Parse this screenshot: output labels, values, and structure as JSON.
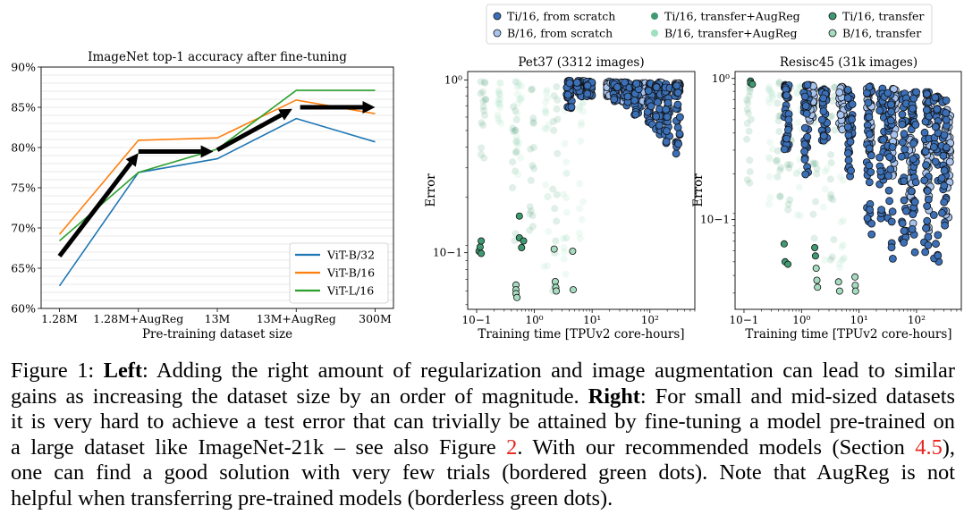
{
  "chart_data": [
    {
      "type": "line",
      "title": "ImageNet top-1 accuracy after fine-tuning",
      "xlabel": "Pre-training dataset size",
      "ylabel": "",
      "categories": [
        "1.28M",
        "1.28M+AugReg",
        "13M",
        "13M+AugReg",
        "300M"
      ],
      "yticks": [
        "60%",
        "65%",
        "70%",
        "75%",
        "80%",
        "85%",
        "90%"
      ],
      "ylim": [
        60,
        90
      ],
      "grid": true,
      "legend_position": "lower-right",
      "series": [
        {
          "name": "ViT-B/32",
          "color": "#1f77b4",
          "values": [
            62.8,
            76.9,
            78.6,
            83.6,
            80.7
          ]
        },
        {
          "name": "ViT-B/16",
          "color": "#ff7f0e",
          "values": [
            69.2,
            80.9,
            81.2,
            85.9,
            84.2
          ]
        },
        {
          "name": "ViT-L/16",
          "color": "#2ca02c",
          "values": [
            68.4,
            76.9,
            79.8,
            87.1,
            87.1
          ]
        }
      ],
      "arrows": [
        {
          "from": [
            0,
            66.5
          ],
          "to": [
            1,
            79.3
          ]
        },
        {
          "from": [
            1,
            79.5
          ],
          "to": [
            1.95,
            79.5
          ]
        },
        {
          "from": [
            2,
            79.7
          ],
          "to": [
            2.95,
            84.8
          ]
        },
        {
          "from": [
            3.05,
            85.0
          ],
          "to": [
            4.0,
            85.0
          ]
        }
      ]
    },
    {
      "type": "scatter",
      "title": "Pet37 (3312 images)",
      "xlabel": "Training time [TPUv2 core-hours]",
      "ylabel": "Error",
      "x_scale": "log",
      "y_scale": "log",
      "xlim": [
        0.07,
        600
      ],
      "ylim": [
        0.047,
        1.12
      ],
      "xticks": [
        "10−1",
        "10⁰",
        "10¹",
        "10²"
      ],
      "yticks": [
        "10⁰",
        "10−1"
      ],
      "series": [
        {
          "name": "Ti/16, from scratch",
          "color": "#3b6fb6",
          "border": true,
          "columns": [
            [
              4,
              0.65,
              0.99
            ],
            [
              6,
              0.8,
              0.99
            ],
            [
              9,
              0.8,
              0.98
            ],
            [
              25,
              0.75,
              0.97
            ],
            [
              40,
              0.7,
              0.97
            ],
            [
              60,
              0.62,
              0.96
            ],
            [
              100,
              0.55,
              0.96
            ],
            [
              140,
              0.48,
              0.95
            ],
            [
              200,
              0.42,
              0.95
            ],
            [
              300,
              0.36,
              0.94
            ]
          ]
        },
        {
          "name": "B/16, from scratch",
          "color": "#a8c4ee",
          "border": true,
          "columns": [
            [
              7,
              0.85,
              0.99
            ],
            [
              20,
              0.8,
              0.98
            ],
            [
              35,
              0.75,
              0.97
            ],
            [
              80,
              0.7,
              0.96
            ],
            [
              150,
              0.8,
              0.97
            ],
            [
              300,
              0.85,
              0.96
            ]
          ]
        },
        {
          "name": "Ti/16, transfer+AugReg",
          "color": "#3f9a72",
          "border": false,
          "columns": [
            [
              0.13,
              0.35,
              0.98
            ],
            [
              0.45,
              0.1,
              0.98
            ],
            [
              0.9,
              0.09,
              0.95
            ],
            [
              2.3,
              0.06,
              0.97
            ]
          ]
        },
        {
          "name": "B/16, transfer+AugReg",
          "color": "#9fe0bf",
          "border": false,
          "columns": [
            [
              0.25,
              0.55,
              0.98
            ],
            [
              0.55,
              0.15,
              0.97
            ],
            [
              1.6,
              0.08,
              0.96
            ],
            [
              3.5,
              0.06,
              0.98
            ],
            [
              6.5,
              0.1,
              0.99
            ]
          ]
        },
        {
          "name": "Ti/16, transfer",
          "color": "#3f9a72",
          "border": true,
          "points": [
            [
              0.11,
              0.102
            ],
            [
              0.115,
              0.108
            ],
            [
              0.12,
              0.099
            ],
            [
              0.12,
              0.117
            ],
            [
              0.55,
              0.163
            ],
            [
              0.55,
              0.122
            ],
            [
              0.6,
              0.107
            ],
            [
              0.65,
              0.117
            ]
          ]
        },
        {
          "name": "B/16, transfer",
          "color": "#a5dcbf",
          "border": true,
          "points": [
            [
              0.48,
              0.065
            ],
            [
              0.48,
              0.061
            ],
            [
              0.48,
              0.058
            ],
            [
              0.5,
              0.055
            ],
            [
              2.2,
              0.105
            ],
            [
              2.3,
              0.068
            ],
            [
              2.35,
              0.063
            ],
            [
              2.4,
              0.06
            ],
            [
              4.6,
              0.102
            ],
            [
              4.7,
              0.061
            ]
          ]
        }
      ]
    },
    {
      "type": "scatter",
      "title": "Resisc45 (31k images)",
      "xlabel": "Training time [TPUv2 core-hours]",
      "ylabel": "Error",
      "x_scale": "log",
      "y_scale": "log",
      "xlim": [
        0.07,
        600
      ],
      "ylim": [
        0.023,
        1.12
      ],
      "xticks": [
        "10−1",
        "10⁰",
        "10¹",
        "10²"
      ],
      "yticks": [
        "10⁰",
        "10−1"
      ],
      "series": [
        {
          "name": "Ti/16, from scratch",
          "color": "#3b6fb6",
          "border": true,
          "columns": [
            [
              0.55,
              0.3,
              0.9
            ],
            [
              1.2,
              0.2,
              0.9
            ],
            [
              2.5,
              0.35,
              0.85
            ],
            [
              7,
              0.2,
              0.85
            ],
            [
              15,
              0.07,
              0.88
            ],
            [
              25,
              0.07,
              0.85
            ],
            [
              35,
              0.05,
              0.8
            ],
            [
              60,
              0.06,
              0.85
            ],
            [
              90,
              0.05,
              0.8
            ],
            [
              150,
              0.05,
              0.8
            ],
            [
              220,
              0.05,
              0.75
            ],
            [
              300,
              0.05,
              0.7
            ]
          ]
        },
        {
          "name": "B/16, from scratch",
          "color": "#a8c4ee",
          "border": true,
          "columns": [
            [
              1.5,
              0.5,
              0.9
            ],
            [
              5,
              0.4,
              0.88
            ],
            [
              15,
              0.3,
              0.88
            ],
            [
              40,
              0.2,
              0.85
            ],
            [
              80,
              0.08,
              0.85
            ],
            [
              160,
              0.08,
              0.7
            ],
            [
              350,
              0.1,
              0.6
            ]
          ]
        },
        {
          "name": "Ti/16, transfer+AugReg",
          "color": "#3f9a72",
          "border": false,
          "columns": [
            [
              0.12,
              0.08,
              0.95
            ],
            [
              0.4,
              0.1,
              0.95
            ],
            [
              0.6,
              0.1,
              0.9
            ],
            [
              1.7,
              0.07,
              0.9
            ],
            [
              3.5,
              0.04,
              0.9
            ]
          ]
        },
        {
          "name": "B/16, transfer+AugReg",
          "color": "#9fe0bf",
          "border": false,
          "columns": [
            [
              0.3,
              0.1,
              0.9
            ],
            [
              0.9,
              0.05,
              0.9
            ],
            [
              2.6,
              0.03,
              0.9
            ],
            [
              5,
              0.03,
              0.85
            ]
          ]
        },
        {
          "name": "Ti/16, transfer",
          "color": "#3f9a72",
          "border": true,
          "points": [
            [
              0.13,
              0.96
            ],
            [
              0.13,
              0.93
            ],
            [
              0.14,
              0.91
            ],
            [
              0.5,
              0.067
            ],
            [
              0.52,
              0.05
            ],
            [
              0.58,
              0.048
            ],
            [
              1.7,
              0.063
            ],
            [
              1.75,
              0.055
            ]
          ]
        },
        {
          "name": "B/16, transfer",
          "color": "#a5dcbf",
          "border": true,
          "points": [
            [
              1.8,
              0.045
            ],
            [
              1.85,
              0.037
            ],
            [
              1.9,
              0.033
            ],
            [
              4.4,
              0.036
            ],
            [
              4.6,
              0.031
            ],
            [
              8.5,
              0.039
            ],
            [
              8.6,
              0.034
            ],
            [
              8.7,
              0.031
            ]
          ]
        }
      ]
    }
  ],
  "legend": {
    "items": [
      {
        "label": "Ti/16, from scratch",
        "color": "#3b6fb6",
        "border": true
      },
      {
        "label": "Ti/16, transfer+AugReg",
        "color": "#3f9a72",
        "border": false
      },
      {
        "label": "Ti/16, transfer",
        "color": "#3f9a72",
        "border": true
      },
      {
        "label": "B/16, from scratch",
        "color": "#a8c4ee",
        "border": true
      },
      {
        "label": "B/16, transfer+AugReg",
        "color": "#9fe0bf",
        "border": false
      },
      {
        "label": "B/16, transfer",
        "color": "#a5dcbf",
        "border": true
      }
    ]
  },
  "caption": {
    "lines": [
      {
        "parts": [
          {
            "t": "Figure 1: "
          },
          {
            "t": "Left",
            "b": true
          },
          {
            "t": ": Adding the right amount of regularization and image augmentation can lead to similar"
          }
        ]
      },
      {
        "parts": [
          {
            "t": "gains as increasing the dataset size by an order of magnitude. "
          },
          {
            "t": "Right",
            "b": true
          },
          {
            "t": ": For small and mid-sized datasets"
          }
        ]
      },
      {
        "parts": [
          {
            "t": "it is very hard to achieve a test error that can trivially be attained by fine-tuning a model pre-trained on"
          }
        ]
      },
      {
        "parts": [
          {
            "t": "a large dataset like ImageNet-21k – see also Figure "
          },
          {
            "t": "2",
            "ref": true
          },
          {
            "t": ". With our recommended models (Section "
          },
          {
            "t": "4.5",
            "ref": true
          },
          {
            "t": "),"
          }
        ]
      },
      {
        "parts": [
          {
            "t": "one can find a good solution with very few trials (bordered green dots). Note that AugReg is not"
          }
        ]
      },
      {
        "parts": [
          {
            "t": "helpful when transferring pre-trained models (borderless green dots)."
          }
        ],
        "last": true
      }
    ]
  }
}
